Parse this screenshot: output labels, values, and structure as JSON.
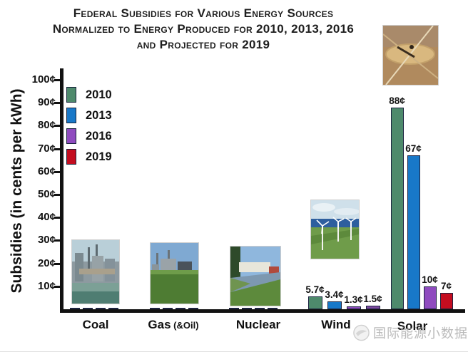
{
  "title": {
    "line1": "Federal Subsidies for Various Energy Sources",
    "line2": "Normalized to Energy Produced for 2010, 2013, 2016",
    "line3": "and Projected for 2019"
  },
  "chart_data": {
    "type": "bar",
    "title": "Federal subsidies for various energy sources normalized to energy produced for 2010, 2013, 2016 and projected for 2019",
    "xlabel": "",
    "ylabel": "Subsidies (in cents per kWh)",
    "ylim": [
      0,
      100
    ],
    "yticks": [
      10,
      20,
      30,
      40,
      50,
      60,
      70,
      80,
      90,
      100
    ],
    "ytick_labels": [
      "10¢",
      "20¢",
      "30¢",
      "40¢",
      "50¢",
      "60¢",
      "70¢",
      "80¢",
      "90¢",
      "100¢"
    ],
    "grid": false,
    "legend_position": "upper left",
    "categories": [
      "Coal",
      "Gas (&Oil)",
      "Nuclear",
      "Wind",
      "Solar"
    ],
    "series": [
      {
        "name": "2010",
        "color": "#4e8a6c",
        "values": [
          0.5,
          0.5,
          0.5,
          5.7,
          88
        ]
      },
      {
        "name": "2013",
        "color": "#1878c8",
        "values": [
          0.5,
          0.5,
          0.5,
          3.4,
          67
        ]
      },
      {
        "name": "2016",
        "color": "#8f4bbf",
        "values": [
          0.5,
          0.5,
          0.5,
          1.3,
          10
        ]
      },
      {
        "name": "2019",
        "color": "#c40d20",
        "values": [
          0.5,
          0.5,
          0.5,
          1.5,
          7
        ]
      }
    ],
    "bar_labels": [
      [
        null,
        null,
        null,
        null
      ],
      [
        null,
        null,
        null,
        null
      ],
      [
        null,
        null,
        null,
        null
      ],
      [
        "5.7¢",
        "3.4¢",
        "1.3¢",
        "1.5¢"
      ],
      [
        "88¢",
        "67¢",
        "10¢",
        "7¢"
      ]
    ],
    "bar_color_overrides": [
      {
        "category": "Wind",
        "series": "2019",
        "color": "#7d4aa0"
      }
    ],
    "unlabeled_values_note": "Coal, Gas (&Oil) and Nuclear bars are unlabeled, near zero (~0.5¢, estimated)"
  },
  "x_axis": {
    "labels": [
      {
        "text": "Coal",
        "suffix": ""
      },
      {
        "text": "Gas",
        "suffix": "(&Oil)"
      },
      {
        "text": "Nuclear",
        "suffix": ""
      },
      {
        "text": "Wind",
        "suffix": ""
      },
      {
        "text": "Solar",
        "suffix": ""
      }
    ]
  },
  "photos": {
    "coal": "coal power plant photo",
    "gas": "gas power plant photo",
    "nuclear": "nuclear power plant photo",
    "wind": "wind turbines photo",
    "solar": "aerial solar farm photo"
  },
  "watermark": {
    "text": "国际能源小数据"
  }
}
